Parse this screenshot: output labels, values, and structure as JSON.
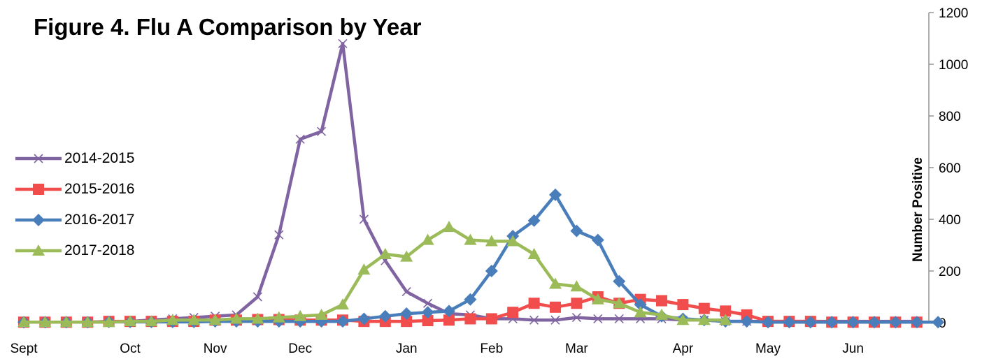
{
  "chart_data": {
    "type": "line",
    "title": "Figure 4. Flu A Comparison by Year",
    "xlabel": "",
    "ylabel": "Number Positive",
    "ylim": [
      0,
      1200
    ],
    "y_ticks": [
      0,
      200,
      400,
      600,
      800,
      1000,
      1200
    ],
    "y_axis_side": "right",
    "x_tick_labels": [
      {
        "label": "Sept",
        "week": 0
      },
      {
        "label": "Oct",
        "week": 5
      },
      {
        "label": "Nov",
        "week": 9
      },
      {
        "label": "Dec",
        "week": 13
      },
      {
        "label": "Jan",
        "week": 18
      },
      {
        "label": "Feb",
        "week": 22
      },
      {
        "label": "Mar",
        "week": 26
      },
      {
        "label": "Apr",
        "week": 31
      },
      {
        "label": "May",
        "week": 35
      },
      {
        "label": "Jun",
        "week": 39
      }
    ],
    "legend_position": "left",
    "grid": false,
    "series": [
      {
        "name": "2014-2015",
        "color": "#8064A2",
        "marker": "x",
        "values": [
          2,
          2,
          2,
          2,
          3,
          5,
          10,
          15,
          20,
          25,
          30,
          100,
          340,
          710,
          740,
          1080,
          400,
          240,
          120,
          75,
          35,
          30,
          15,
          15,
          10,
          10,
          20,
          15,
          15,
          15,
          15,
          10,
          10,
          5,
          5,
          5,
          5,
          5,
          5,
          5,
          5,
          5,
          5
        ]
      },
      {
        "name": "2015-2016",
        "color": "#F24D4D",
        "marker": "square",
        "values": [
          2,
          2,
          2,
          2,
          5,
          5,
          5,
          5,
          5,
          10,
          10,
          12,
          12,
          10,
          10,
          10,
          5,
          5,
          5,
          8,
          10,
          15,
          15,
          40,
          75,
          60,
          75,
          100,
          75,
          90,
          85,
          70,
          55,
          45,
          30,
          5,
          5,
          5,
          2,
          2,
          2,
          2,
          2
        ]
      },
      {
        "name": "2016-2017",
        "color": "#4A7EBB",
        "marker": "diamond",
        "values": [
          2,
          2,
          2,
          2,
          3,
          3,
          3,
          3,
          3,
          5,
          5,
          5,
          5,
          5,
          5,
          5,
          15,
          25,
          35,
          40,
          45,
          90,
          200,
          335,
          395,
          495,
          355,
          320,
          160,
          70,
          25,
          15,
          10,
          5,
          5,
          2,
          2,
          2,
          2,
          2,
          2,
          2,
          2,
          2
        ]
      },
      {
        "name": "2017-2018",
        "color": "#9BBB59",
        "marker": "triangle",
        "values": [
          2,
          2,
          2,
          2,
          2,
          5,
          5,
          10,
          10,
          10,
          15,
          15,
          20,
          25,
          30,
          70,
          205,
          265,
          255,
          320,
          370,
          320,
          315,
          315,
          265,
          150,
          140,
          90,
          75,
          40,
          30,
          10,
          10,
          10
        ]
      }
    ]
  }
}
